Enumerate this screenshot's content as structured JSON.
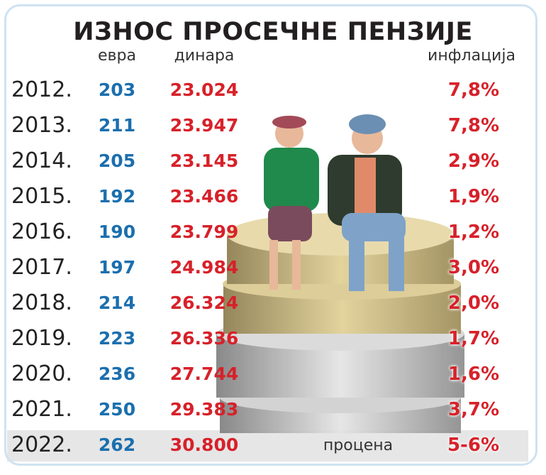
{
  "header": {
    "title": "ИЗНОС ПРОСЕЧНЕ ПЕНЗИЈЕ"
  },
  "table": {
    "columns": [
      "евра",
      "динара",
      "инфлација"
    ],
    "rows": [
      [
        "2012.",
        "203",
        "23.024",
        "7,8%"
      ],
      [
        "2013.",
        "211",
        "23.947",
        "7,8%"
      ],
      [
        "2014.",
        "205",
        "23.145",
        "2,9%"
      ],
      [
        "2015.",
        "192",
        "23.466",
        "1,9%"
      ],
      [
        "2016.",
        "190",
        "23.799",
        "1,2%"
      ],
      [
        "2017.",
        "197",
        "24.984",
        "3,0%"
      ],
      [
        "2018.",
        "214",
        "26.324",
        "2,0%"
      ],
      [
        "2019.",
        "223",
        "26.336",
        "1,7%"
      ],
      [
        "2020.",
        "236",
        "27.744",
        "1,6%"
      ],
      [
        "2021.",
        "250",
        "29.383",
        "3,7%"
      ],
      [
        "2022.",
        "262",
        "30.800",
        "5-6%"
      ]
    ],
    "estimate_label": "процена"
  }
}
